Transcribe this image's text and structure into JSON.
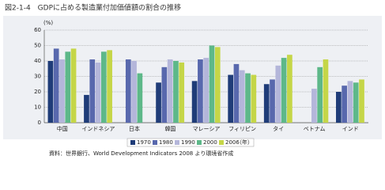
{
  "chart_data": {
    "type": "bar",
    "title": "図2-1-4　GDPに占める製造業付加価値額の割合の推移",
    "y_unit": "(%)",
    "categories": [
      "中国",
      "インドネシア",
      "日本",
      "韓国",
      "マレーシア",
      "フィリピン",
      "タイ",
      "ベトナム",
      "インド"
    ],
    "series": [
      {
        "name": "1970",
        "color": "#1f3c78",
        "values": [
          40,
          18,
          null,
          26,
          27,
          31,
          25,
          null,
          20
        ]
      },
      {
        "name": "1980",
        "color": "#5868ad",
        "values": [
          48,
          41,
          41,
          36,
          41,
          38,
          28,
          null,
          24
        ]
      },
      {
        "name": "1990",
        "color": "#b4b6da",
        "values": [
          41,
          39,
          40,
          41,
          42,
          34,
          37,
          22,
          27
        ]
      },
      {
        "name": "2000",
        "color": "#5db889",
        "values": [
          46,
          46,
          32,
          40,
          50,
          32,
          42,
          36,
          26
        ]
      },
      {
        "name": "2006",
        "color": "#c5d648",
        "values": [
          48,
          47,
          null,
          39,
          49,
          31,
          44,
          41,
          28
        ]
      }
    ],
    "legend_unit": "（年）",
    "ylim": [
      0,
      60
    ],
    "yticks": [
      0,
      10,
      20,
      30,
      40,
      50,
      60
    ],
    "grid": true,
    "source": "資料：世界銀行、World Development Indicators 2008 より環境省作成"
  }
}
